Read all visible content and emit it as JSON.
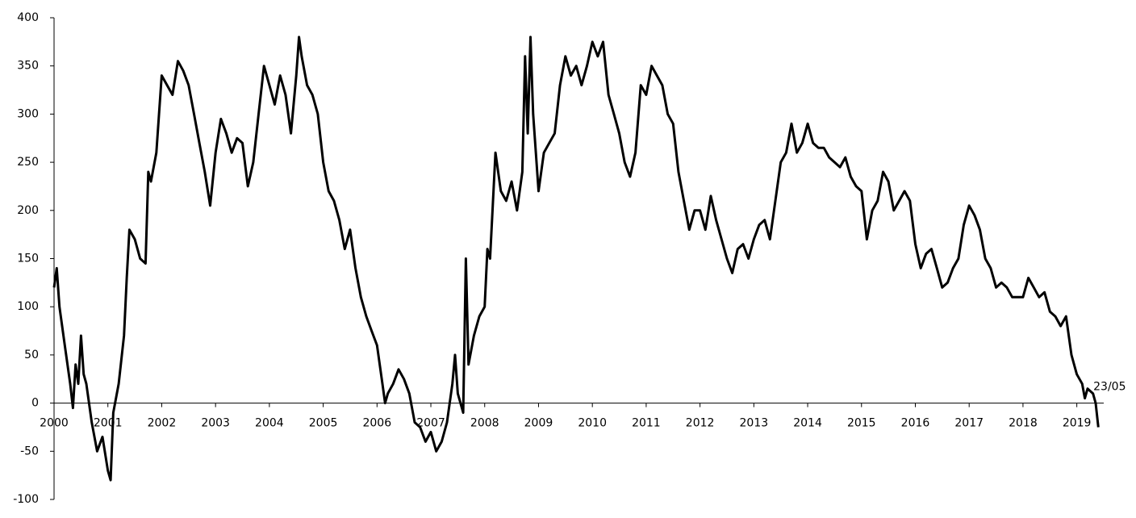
{
  "chart_data": {
    "type": "line",
    "x": [
      2000,
      2000.05,
      2000.1,
      2000.2,
      2000.3,
      2000.35,
      2000.4,
      2000.45,
      2000.5,
      2000.55,
      2000.6,
      2000.7,
      2000.8,
      2000.9,
      2001,
      2001.05,
      2001.1,
      2001.2,
      2001.3,
      2001.35,
      2001.4,
      2001.5,
      2001.6,
      2001.7,
      2001.75,
      2001.8,
      2001.9,
      2001.95,
      2002,
      2002.1,
      2002.2,
      2002.3,
      2002.4,
      2002.5,
      2002.6,
      2002.7,
      2002.8,
      2002.9,
      2003,
      2003.1,
      2003.2,
      2003.3,
      2003.4,
      2003.5,
      2003.6,
      2003.7,
      2003.8,
      2003.9,
      2004,
      2004.1,
      2004.2,
      2004.3,
      2004.4,
      2004.5,
      2004.55,
      2004.6,
      2004.7,
      2004.8,
      2004.9,
      2005,
      2005.1,
      2005.2,
      2005.3,
      2005.4,
      2005.5,
      2005.6,
      2005.7,
      2005.8,
      2005.9,
      2006,
      2006.1,
      2006.15,
      2006.2,
      2006.3,
      2006.4,
      2006.5,
      2006.6,
      2006.7,
      2006.8,
      2006.9,
      2007,
      2007.1,
      2007.2,
      2007.3,
      2007.4,
      2007.45,
      2007.5,
      2007.6,
      2007.65,
      2007.7,
      2007.8,
      2007.9,
      2008,
      2008.05,
      2008.1,
      2008.2,
      2008.3,
      2008.4,
      2008.5,
      2008.6,
      2008.7,
      2008.75,
      2008.8,
      2008.85,
      2008.9,
      2009,
      2009.1,
      2009.2,
      2009.3,
      2009.4,
      2009.5,
      2009.6,
      2009.7,
      2009.8,
      2009.9,
      2010,
      2010.1,
      2010.2,
      2010.3,
      2010.4,
      2010.5,
      2010.6,
      2010.7,
      2010.8,
      2010.9,
      2011,
      2011.1,
      2011.2,
      2011.3,
      2011.4,
      2011.5,
      2011.6,
      2011.7,
      2011.8,
      2011.9,
      2012,
      2012.1,
      2012.2,
      2012.3,
      2012.4,
      2012.5,
      2012.6,
      2012.7,
      2012.8,
      2012.9,
      2013,
      2013.1,
      2013.2,
      2013.3,
      2013.4,
      2013.5,
      2013.6,
      2013.7,
      2013.8,
      2013.9,
      2014,
      2014.1,
      2014.2,
      2014.3,
      2014.4,
      2014.5,
      2014.6,
      2014.7,
      2014.8,
      2014.9,
      2015,
      2015.1,
      2015.2,
      2015.3,
      2015.4,
      2015.5,
      2015.6,
      2015.7,
      2015.8,
      2015.9,
      2016,
      2016.1,
      2016.2,
      2016.3,
      2016.4,
      2016.5,
      2016.6,
      2016.7,
      2016.8,
      2016.9,
      2017,
      2017.1,
      2017.2,
      2017.3,
      2017.4,
      2017.5,
      2017.6,
      2017.7,
      2017.8,
      2017.9,
      2018,
      2018.1,
      2018.2,
      2018.3,
      2018.4,
      2018.5,
      2018.6,
      2018.7,
      2018.8,
      2018.9,
      2019,
      2019.1,
      2019.15,
      2019.2,
      2019.3,
      2019.35,
      2019.4
    ],
    "values": [
      120,
      140,
      100,
      60,
      20,
      -5,
      40,
      20,
      70,
      30,
      20,
      -20,
      -50,
      -35,
      -70,
      -80,
      -10,
      20,
      70,
      130,
      180,
      170,
      150,
      145,
      240,
      230,
      260,
      300,
      340,
      330,
      320,
      355,
      345,
      330,
      300,
      270,
      240,
      205,
      260,
      295,
      280,
      260,
      275,
      270,
      225,
      250,
      300,
      350,
      330,
      310,
      340,
      320,
      280,
      340,
      380,
      360,
      330,
      320,
      300,
      250,
      220,
      210,
      190,
      160,
      180,
      140,
      110,
      90,
      75,
      60,
      20,
      0,
      10,
      20,
      35,
      25,
      10,
      -20,
      -25,
      -40,
      -30,
      -50,
      -40,
      -20,
      20,
      50,
      10,
      -10,
      150,
      40,
      70,
      90,
      100,
      160,
      150,
      260,
      220,
      210,
      230,
      200,
      240,
      360,
      280,
      380,
      300,
      220,
      260,
      270,
      280,
      330,
      360,
      340,
      350,
      330,
      350,
      375,
      360,
      375,
      320,
      300,
      280,
      250,
      235,
      260,
      330,
      320,
      350,
      340,
      330,
      300,
      290,
      240,
      210,
      180,
      200,
      200,
      180,
      215,
      190,
      170,
      150,
      135,
      160,
      165,
      150,
      170,
      185,
      190,
      170,
      210,
      250,
      260,
      290,
      260,
      270,
      290,
      270,
      265,
      265,
      255,
      250,
      245,
      255,
      235,
      225,
      220,
      170,
      200,
      210,
      240,
      230,
      200,
      210,
      220,
      210,
      165,
      140,
      155,
      160,
      140,
      120,
      125,
      140,
      150,
      185,
      205,
      195,
      180,
      150,
      140,
      120,
      125,
      120,
      110,
      110,
      110,
      130,
      120,
      110,
      115,
      95,
      90,
      80,
      90,
      50,
      30,
      20,
      5,
      15,
      10,
      0,
      -25
    ],
    "color": "#000000",
    "xlim": [
      2000,
      2019.5
    ],
    "xticks": [
      2000,
      2001,
      2002,
      2003,
      2004,
      2005,
      2006,
      2007,
      2008,
      2009,
      2010,
      2011,
      2012,
      2013,
      2014,
      2015,
      2016,
      2017,
      2018,
      2019
    ],
    "ylim": [
      -100,
      400
    ],
    "yticks": [
      -100,
      -50,
      0,
      50,
      100,
      150,
      200,
      250,
      300,
      350,
      400
    ],
    "annotation": "23/05"
  }
}
